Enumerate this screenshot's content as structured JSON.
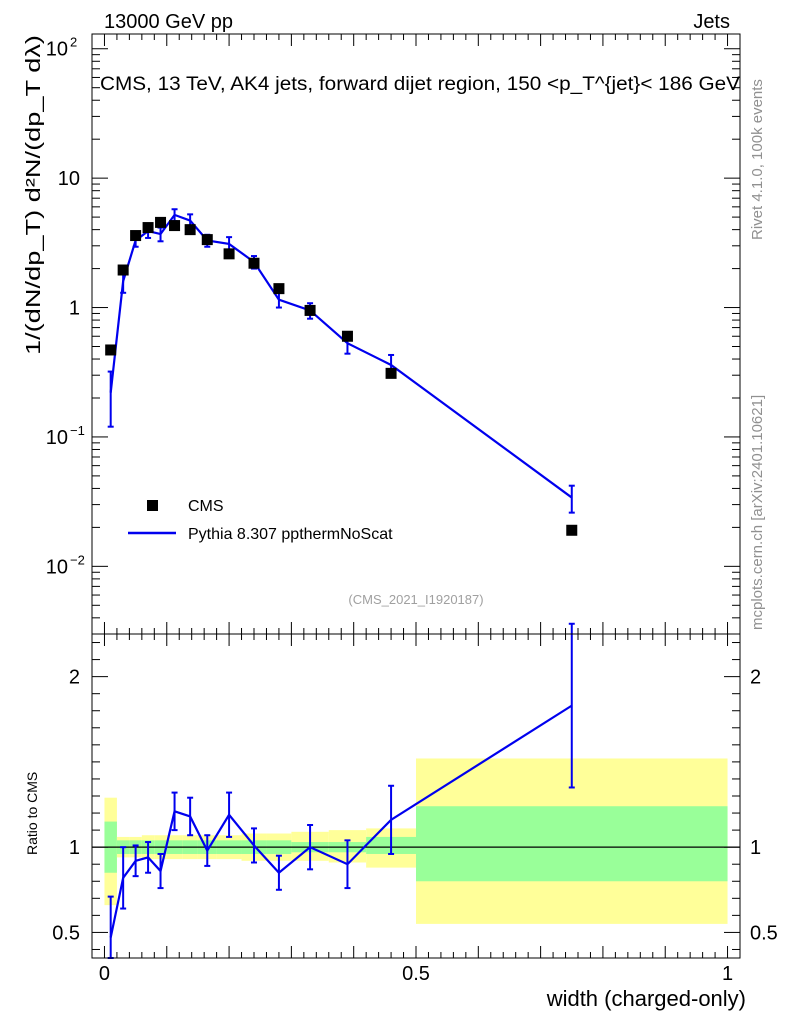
{
  "header": {
    "left": "13000 GeV pp",
    "right": "Jets",
    "watermark": "(CMS_2021_I1920187)",
    "side_top": "Rivet 4.1.0,  100k events",
    "side_bottom": "mcplots.cern.ch [arXiv:2401.10621]"
  },
  "colors": {
    "mc": "#0000ee",
    "band_inner": "#99ff99",
    "band_outer": "#ffff99",
    "data": "#000000"
  },
  "chart_data": {
    "type": "scatter",
    "title": "CMS, 13 TeV, AK4 jets, forward dijet region, 150 <p_T^{jet}< 186 GeV",
    "xlabel": "width (charged-only)",
    "ylabel_main": "1/(dN/dp_T) d²N/(dp_T dλ)",
    "ylabel_ratio": "Ratio to CMS",
    "xlim": [
      -0.02,
      1.02
    ],
    "ylim_main": [
      0.003,
      130
    ],
    "ylim_ratio": [
      0.35,
      2.25
    ],
    "main_yscale": "log",
    "x_tick_labels": [
      "0",
      "0.5",
      "1"
    ],
    "ratio_tick_labels": [
      "0.5",
      "1",
      "2"
    ],
    "legend": {
      "position": "lower-left",
      "entries": [
        "CMS",
        "Pythia 8.307 ppthermNoScat"
      ]
    },
    "bin_edges": [
      0.0,
      0.02,
      0.04,
      0.06,
      0.08,
      0.1,
      0.125,
      0.15,
      0.18,
      0.22,
      0.26,
      0.3,
      0.36,
      0.42,
      0.5,
      1.0
    ],
    "band_inner": [
      [
        0.85,
        1.15
      ],
      [
        0.96,
        1.04
      ],
      [
        0.96,
        1.04
      ],
      [
        0.96,
        1.04
      ],
      [
        0.96,
        1.04
      ],
      [
        0.96,
        1.04
      ],
      [
        0.96,
        1.04
      ],
      [
        0.96,
        1.04
      ],
      [
        0.96,
        1.04
      ],
      [
        0.96,
        1.04
      ],
      [
        0.96,
        1.04
      ],
      [
        0.97,
        1.03
      ],
      [
        0.97,
        1.03
      ],
      [
        0.96,
        1.06
      ],
      [
        0.8,
        1.24
      ]
    ],
    "band_outer": [
      [
        0.66,
        1.29
      ],
      [
        0.94,
        1.06
      ],
      [
        0.94,
        1.06
      ],
      [
        0.93,
        1.07
      ],
      [
        0.93,
        1.07
      ],
      [
        0.93,
        1.07
      ],
      [
        0.93,
        1.07
      ],
      [
        0.93,
        1.07
      ],
      [
        0.93,
        1.07
      ],
      [
        0.92,
        1.08
      ],
      [
        0.92,
        1.08
      ],
      [
        0.92,
        1.09
      ],
      [
        0.91,
        1.1
      ],
      [
        0.88,
        1.11
      ],
      [
        0.55,
        1.52
      ]
    ],
    "series": [
      {
        "name": "CMS",
        "x": [
          0.01,
          0.03,
          0.05,
          0.07,
          0.09,
          0.1125,
          0.1375,
          0.165,
          0.2,
          0.24,
          0.28,
          0.33,
          0.39,
          0.46,
          0.75
        ],
        "y": [
          0.47,
          1.95,
          3.6,
          4.15,
          4.55,
          4.3,
          4.0,
          3.35,
          2.6,
          2.2,
          1.4,
          0.95,
          0.6,
          0.31,
          0.019
        ]
      },
      {
        "name": "Pythia 8.307 ppthermNoScat",
        "x": [
          0.01,
          0.03,
          0.05,
          0.07,
          0.09,
          0.1125,
          0.1375,
          0.165,
          0.2,
          0.24,
          0.28,
          0.33,
          0.39,
          0.46,
          0.75
        ],
        "y": [
          0.22,
          1.6,
          3.3,
          3.9,
          3.7,
          5.2,
          4.7,
          3.3,
          3.1,
          2.25,
          1.15,
          0.95,
          0.53,
          0.36,
          0.034
        ],
        "err": [
          0.1,
          0.3,
          0.35,
          0.45,
          0.45,
          0.55,
          0.55,
          0.35,
          0.4,
          0.25,
          0.15,
          0.13,
          0.09,
          0.07,
          0.008
        ],
        "ratio": [
          0.47,
          0.82,
          0.92,
          0.94,
          0.86,
          1.21,
          1.18,
          0.98,
          1.19,
          1.01,
          0.85,
          1.0,
          0.9,
          1.16,
          1.83
        ],
        "ratio_err": [
          0.24,
          0.18,
          0.09,
          0.09,
          0.1,
          0.11,
          0.11,
          0.09,
          0.13,
          0.1,
          0.1,
          0.13,
          0.14,
          0.2,
          0.48
        ]
      }
    ]
  }
}
